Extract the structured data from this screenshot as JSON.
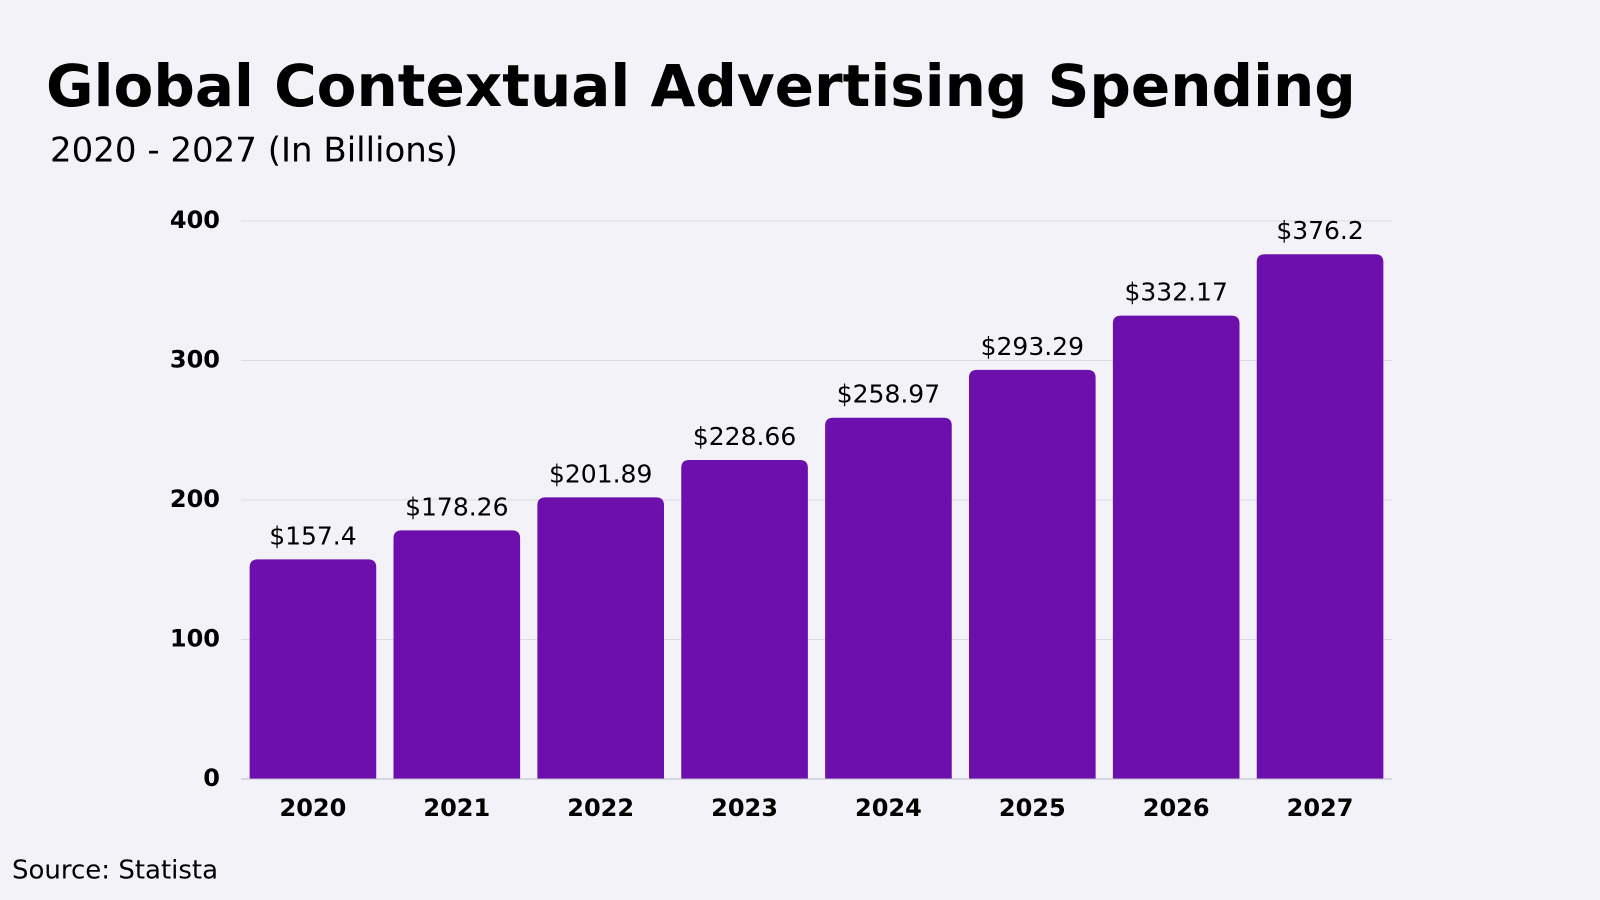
{
  "chart_data": {
    "type": "bar",
    "title": "Global Contextual Advertising Spending",
    "subtitle": "2020 - 2027 (In Billions)",
    "source": "Source: Statista",
    "categories": [
      "2020",
      "2021",
      "2022",
      "2023",
      "2024",
      "2025",
      "2026",
      "2027"
    ],
    "values": [
      157.4,
      178.26,
      201.89,
      228.66,
      258.97,
      293.29,
      332.17,
      376.2
    ],
    "value_labels": [
      "$157.4",
      "$178.26",
      "$201.89",
      "$228.66",
      "$258.97",
      "$293.29",
      "$332.17",
      "$376.2"
    ],
    "color": "#6c0fac",
    "ylim": [
      0,
      400
    ],
    "yticks": [
      0,
      100,
      200,
      300,
      400
    ],
    "grid": true
  }
}
